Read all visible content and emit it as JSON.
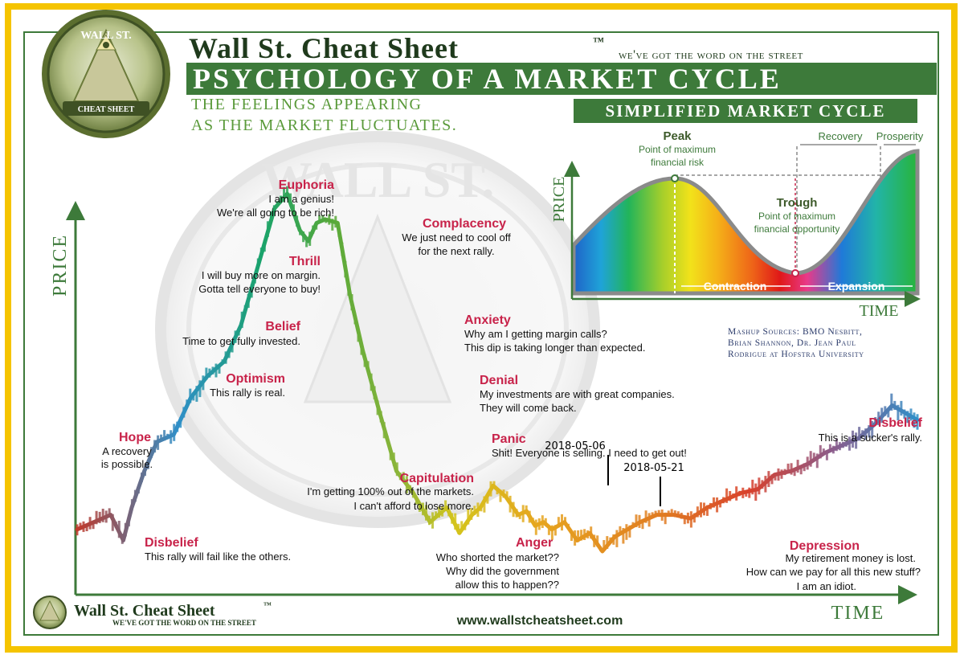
{
  "header": {
    "brand": "Wall St. Cheat Sheet",
    "trademark": "™",
    "tagline": "we've got the word on the street",
    "title": "Psychology of a Market Cycle",
    "subtitle_line1": "The feelings appearing",
    "subtitle_line2": "as the market fluctuates."
  },
  "logo": {
    "top_text": "WALL ST.",
    "bottom_text": "CHEAT SHEET"
  },
  "colors": {
    "frame": "#f5c400",
    "green": "#3d7a3a",
    "label_red": "#c8234a",
    "panel_border": "#8a8a8a"
  },
  "simplified": {
    "title": "Simplified Market Cycle",
    "peak_label": "Peak",
    "peak_note_1": "Point of maximum",
    "peak_note_2": "financial risk",
    "trough_label": "Trough",
    "trough_note_1": "Point of maximum",
    "trough_note_2": "financial opportunity",
    "recovery": "Recovery",
    "prosperity": "Prosperity",
    "contraction": "Contraction",
    "expansion": "Expansion",
    "y_axis": "PRICE",
    "x_axis": "TIME"
  },
  "sources": {
    "line1": "Mashup Sources: BMO Nesbitt,",
    "line2": "Brian Shannon, Dr. Jean Paul",
    "line3": "Rodrigue at Hofstra University"
  },
  "footer": {
    "brand": "Wall St. Cheat Sheet",
    "trademark": "™",
    "tagline": "we've got the word on the street",
    "url": "www.wallstcheatsheet.com"
  },
  "chart_data": {
    "type": "line",
    "xlabel": "TIME",
    "ylabel": "PRICE",
    "series": [
      {
        "x": [
          0.0,
          0.02,
          0.04,
          0.055,
          0.065,
          0.08,
          0.095,
          0.115,
          0.135,
          0.155,
          0.175,
          0.195,
          0.215,
          0.235,
          0.25,
          0.265,
          0.275,
          0.285,
          0.295,
          0.31,
          0.325,
          0.34,
          0.36,
          0.38,
          0.4,
          0.42,
          0.44,
          0.455,
          0.47,
          0.48,
          0.495,
          0.51,
          0.525,
          0.535,
          0.545,
          0.555,
          0.565,
          0.58,
          0.595,
          0.61,
          0.625,
          0.64,
          0.655,
          0.67,
          0.69,
          0.71,
          0.73,
          0.75,
          0.77,
          0.79,
          0.81,
          0.83,
          0.85,
          0.87,
          0.89,
          0.91,
          0.93,
          0.95,
          0.97,
          0.985,
          1.0
        ],
        "values": [
          0.06,
          0.08,
          0.1,
          0.03,
          0.12,
          0.22,
          0.3,
          0.32,
          0.42,
          0.48,
          0.52,
          0.62,
          0.78,
          0.94,
          0.98,
          0.88,
          0.85,
          0.9,
          0.91,
          0.9,
          0.7,
          0.55,
          0.38,
          0.22,
          0.16,
          0.08,
          0.12,
          0.05,
          0.1,
          0.12,
          0.18,
          0.15,
          0.1,
          0.11,
          0.07,
          0.08,
          0.06,
          0.08,
          0.03,
          0.05,
          0.0,
          0.04,
          0.06,
          0.08,
          0.1,
          0.1,
          0.09,
          0.12,
          0.14,
          0.16,
          0.17,
          0.21,
          0.22,
          0.24,
          0.27,
          0.29,
          0.31,
          0.35,
          0.4,
          0.38,
          0.36
        ]
      }
    ],
    "stages": [
      {
        "name": "Disbelief",
        "caption_1": "This rally will fail like the others.",
        "caption_2": ""
      },
      {
        "name": "Hope",
        "caption_1": "A recovery",
        "caption_2": "is possible."
      },
      {
        "name": "Optimism",
        "caption_1": "This rally is real.",
        "caption_2": ""
      },
      {
        "name": "Belief",
        "caption_1": "Time to get fully invested.",
        "caption_2": ""
      },
      {
        "name": "Thrill",
        "caption_1": "I will buy more on margin.",
        "caption_2": "Gotta tell everyone to buy!"
      },
      {
        "name": "Euphoria",
        "caption_1": "I am a genius!",
        "caption_2": "We're all going to be rich!"
      },
      {
        "name": "Complacency",
        "caption_1": "We just need to cool off",
        "caption_2": "for the next rally."
      },
      {
        "name": "Anxiety",
        "caption_1": "Why am I getting margin calls?",
        "caption_2": "This dip is taking longer than expected."
      },
      {
        "name": "Denial",
        "caption_1": "My investments are with great companies.",
        "caption_2": "They will come back."
      },
      {
        "name": "Panic",
        "caption_1": "Shit! Everyone is selling. I need to get out!",
        "caption_2": ""
      },
      {
        "name": "Capitulation",
        "caption_1": "I'm getting 100% out of the markets.",
        "caption_2": "I can't afford to lose more."
      },
      {
        "name": "Anger",
        "caption_1": "Who shorted the market??",
        "caption_2": "Why did the government",
        "caption_3": "allow this to happen??"
      },
      {
        "name": "Depression",
        "caption_1": "My retirement money is lost.",
        "caption_2": "How can we pay for all this new stuff?",
        "caption_3": "I am an idiot."
      },
      {
        "name": "Disbelief",
        "caption_1": "This is a sucker's rally.",
        "caption_2": ""
      }
    ],
    "annotations": [
      {
        "label": "2018-05-06"
      },
      {
        "label": "2018-05-21"
      }
    ]
  }
}
